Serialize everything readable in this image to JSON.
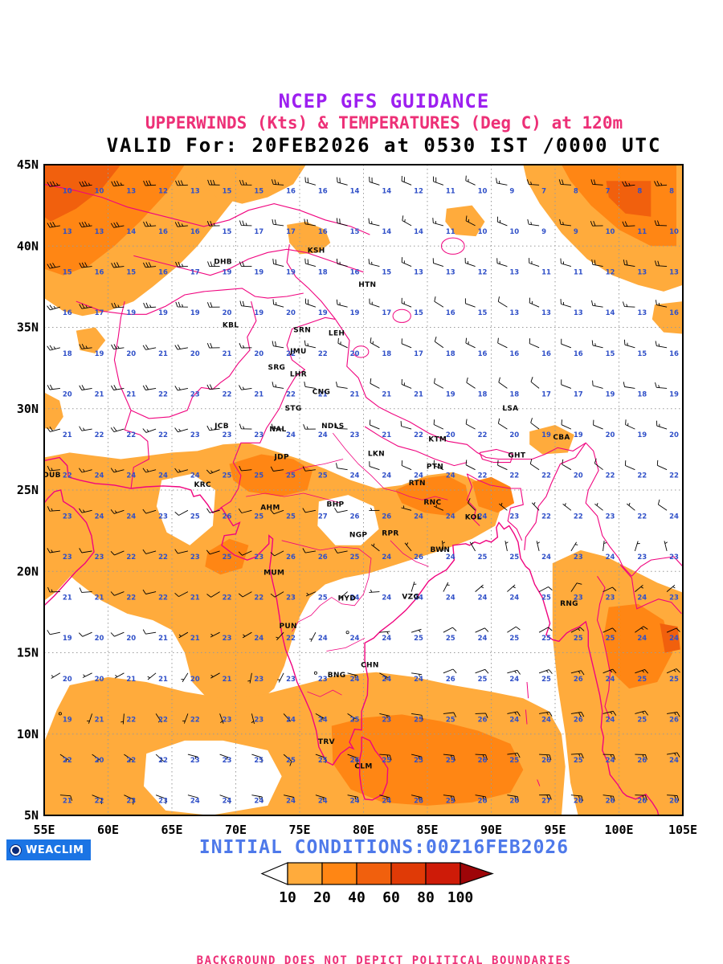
{
  "header": {
    "line1": "NCEP GFS GUIDANCE",
    "line2": "UPPERWINDS (Kts) & TEMPERATURES (Deg C) at 120m",
    "line3": "VALID For: 20FEB2026 at 0530 IST /0000 UTC"
  },
  "map": {
    "lat_ticks": [
      {
        "label": "45N",
        "value": 45
      },
      {
        "label": "40N",
        "value": 40
      },
      {
        "label": "35N",
        "value": 35
      },
      {
        "label": "30N",
        "value": 30
      },
      {
        "label": "25N",
        "value": 25
      },
      {
        "label": "20N",
        "value": 20
      },
      {
        "label": "15N",
        "value": 15
      },
      {
        "label": "10N",
        "value": 10
      },
      {
        "label": "5N",
        "value": 5
      }
    ],
    "lon_ticks": [
      {
        "label": "55E",
        "value": 55
      },
      {
        "label": "60E",
        "value": 60
      },
      {
        "label": "65E",
        "value": 65
      },
      {
        "label": "70E",
        "value": 70
      },
      {
        "label": "75E",
        "value": 75
      },
      {
        "label": "80E",
        "value": 80
      },
      {
        "label": "85E",
        "value": 85
      },
      {
        "label": "90E",
        "value": 90
      },
      {
        "label": "95E",
        "value": 95
      },
      {
        "label": "100E",
        "value": 100
      },
      {
        "label": "105E",
        "value": 105
      }
    ],
    "cities": [
      {
        "code": "DHB",
        "lon": 69.0,
        "lat": 38.9
      },
      {
        "code": "KSH",
        "lon": 76.3,
        "lat": 39.6
      },
      {
        "code": "HTN",
        "lon": 80.3,
        "lat": 37.5
      },
      {
        "code": "KBL",
        "lon": 69.6,
        "lat": 35.0
      },
      {
        "code": "SRN",
        "lon": 75.2,
        "lat": 34.7
      },
      {
        "code": "LEH",
        "lon": 77.9,
        "lat": 34.5
      },
      {
        "code": "JMU",
        "lon": 74.9,
        "lat": 33.4
      },
      {
        "code": "SRG",
        "lon": 73.2,
        "lat": 32.4
      },
      {
        "code": "LHR",
        "lon": 74.9,
        "lat": 32.0
      },
      {
        "code": "CNG",
        "lon": 76.7,
        "lat": 30.9
      },
      {
        "code": "STG",
        "lon": 74.5,
        "lat": 29.9
      },
      {
        "code": "JCB",
        "lon": 68.9,
        "lat": 28.8
      },
      {
        "code": "NAL",
        "lon": 73.3,
        "lat": 28.6
      },
      {
        "code": "NDLS",
        "lon": 77.6,
        "lat": 28.8
      },
      {
        "code": "LSA",
        "lon": 91.5,
        "lat": 29.9
      },
      {
        "code": "CBA",
        "lon": 95.5,
        "lat": 28.1
      },
      {
        "code": "KTM",
        "lon": 85.8,
        "lat": 28.0
      },
      {
        "code": "LKN",
        "lon": 81.0,
        "lat": 27.1
      },
      {
        "code": "JDP",
        "lon": 73.6,
        "lat": 26.9
      },
      {
        "code": "GHT",
        "lon": 92.0,
        "lat": 27.0
      },
      {
        "code": "PTN",
        "lon": 85.6,
        "lat": 26.3
      },
      {
        "code": "DUB",
        "lon": 55.6,
        "lat": 25.8
      },
      {
        "code": "RTN",
        "lon": 84.2,
        "lat": 25.3
      },
      {
        "code": "KRC",
        "lon": 67.4,
        "lat": 25.2
      },
      {
        "code": "AHM",
        "lon": 72.7,
        "lat": 23.8
      },
      {
        "code": "BHP",
        "lon": 77.8,
        "lat": 24.0
      },
      {
        "code": "RNC",
        "lon": 85.4,
        "lat": 24.1
      },
      {
        "code": "KOL",
        "lon": 88.6,
        "lat": 23.2
      },
      {
        "code": "NGP",
        "lon": 79.6,
        "lat": 22.1
      },
      {
        "code": "RPR",
        "lon": 82.1,
        "lat": 22.2
      },
      {
        "code": "BWN",
        "lon": 86.0,
        "lat": 21.2
      },
      {
        "code": "MUM",
        "lon": 73.0,
        "lat": 19.8
      },
      {
        "code": "HYD",
        "lon": 78.7,
        "lat": 18.2
      },
      {
        "code": "VZG",
        "lon": 83.7,
        "lat": 18.3
      },
      {
        "code": "RNG",
        "lon": 96.1,
        "lat": 17.9
      },
      {
        "code": "PUN",
        "lon": 74.1,
        "lat": 16.5
      },
      {
        "code": "CHN",
        "lon": 80.5,
        "lat": 14.1
      },
      {
        "code": "BNG",
        "lon": 77.9,
        "lat": 13.5
      },
      {
        "code": "TRV",
        "lon": 77.1,
        "lat": 9.4
      },
      {
        "code": "CLM",
        "lon": 80.0,
        "lat": 7.9
      }
    ],
    "field": {
      "lon_start": 56.25,
      "lat_start": 6.25,
      "step": 2.5,
      "cols": 20,
      "rows": 16,
      "ctrl_lons": [
        55,
        65,
        75,
        85,
        95,
        105
      ],
      "ctrl_lats": [
        45,
        35,
        25,
        15,
        5
      ],
      "temp": [
        [
          8,
          12,
          15,
          10,
          6,
          8
        ],
        [
          18,
          20,
          21,
          16,
          14,
          16
        ],
        [
          24,
          24,
          26,
          25,
          22,
          23
        ],
        [
          19,
          21,
          23,
          24,
          25,
          24
        ],
        [
          22,
          23,
          25,
          26,
          26,
          25
        ]
      ],
      "u": [
        [
          38,
          30,
          24,
          15,
          18,
          26
        ],
        [
          26,
          22,
          16,
          10,
          12,
          16
        ],
        [
          14,
          13,
          11,
          8,
          7,
          9
        ],
        [
          9,
          7,
          4,
          -8,
          -14,
          -14
        ],
        [
          -12,
          -13,
          -14,
          -18,
          -20,
          -16
        ]
      ],
      "v": [
        [
          8,
          2,
          -4,
          -6,
          -2,
          4
        ],
        [
          6,
          2,
          -4,
          -6,
          -4,
          -2
        ],
        [
          2,
          5,
          2,
          -4,
          -6,
          -4
        ],
        [
          1,
          3,
          4,
          -2,
          -5,
          -6
        ],
        [
          3,
          4,
          4,
          3,
          1,
          3
        ]
      ]
    }
  },
  "footer": {
    "logo_text": "WEACLIM",
    "initial_conditions": "INITIAL CONDITIONS:00Z16FEB2026",
    "colorbar": {
      "labels": [
        "10",
        "20",
        "40",
        "60",
        "80",
        "100"
      ],
      "colors": [
        "#ffffff",
        "#FFAB3C",
        "#FF8614",
        "#F1600D",
        "#E03A06",
        "#CE1B08",
        "#9E0508"
      ]
    },
    "disclaimer": "BACKGROUND DOES NOT DEPICT POLITICAL BOUNDARIES"
  },
  "colors": {
    "shade1": "#FFAB3C",
    "shade2": "#FF8614",
    "shade3": "#F1600D",
    "coast": "#F0047F",
    "temp_text": "#3050C8",
    "grid": "#9a9a9a",
    "title1": "#9D1FF0",
    "title2": "#ED3077",
    "initial_blue": "#4E79EA"
  }
}
